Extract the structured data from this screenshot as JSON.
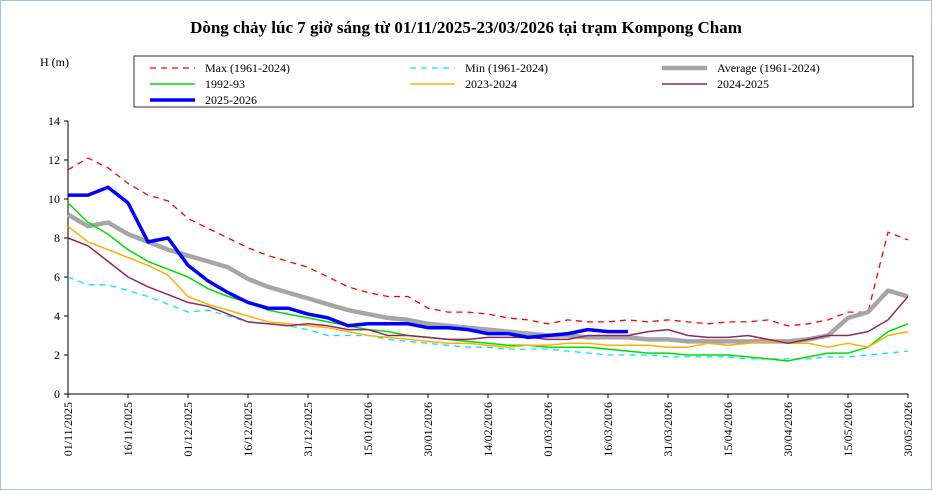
{
  "chart_data": {
    "type": "line",
    "title": "Dòng chảy lúc 7 giờ sáng từ 01/11/2025-23/03/2026 tại trạm Kompong Cham",
    "y_label": "H (m)",
    "legend": "top",
    "x": [
      "01/11/2025",
      "06/11/2025",
      "11/11/2025",
      "16/11/2025",
      "21/11/2025",
      "26/11/2025",
      "01/12/2025",
      "06/12/2025",
      "11/12/2025",
      "16/12/2025",
      "21/12/2025",
      "26/12/2025",
      "31/12/2025",
      "05/01/2026",
      "10/01/2026",
      "15/01/2026",
      "20/01/2026",
      "25/01/2026",
      "30/01/2026",
      "04/02/2026",
      "09/02/2026",
      "14/02/2026",
      "19/02/2026",
      "24/02/2026",
      "01/03/2026",
      "06/03/2026",
      "11/03/2026",
      "16/03/2026",
      "21/03/2026",
      "26/03/2026",
      "31/03/2026",
      "05/04/2026",
      "10/04/2026",
      "15/04/2026",
      "20/04/2026",
      "25/04/2026",
      "30/04/2026",
      "05/05/2026",
      "10/05/2026",
      "15/05/2026",
      "20/05/2026",
      "25/05/2026",
      "30/05/2026"
    ],
    "xlim": [
      "01/11/2025",
      "30/05/2026"
    ],
    "xticks": [
      "01/11/2025",
      "16/11/2025",
      "01/12/2025",
      "16/12/2025",
      "31/12/2025",
      "15/01/2026",
      "30/01/2026",
      "14/02/2026",
      "01/03/2026",
      "16/03/2026",
      "31/03/2026",
      "15/04/2026",
      "30/04/2026",
      "15/05/2026",
      "30/05/2026"
    ],
    "ylim": [
      0,
      14
    ],
    "yticks": [
      0,
      2,
      4,
      6,
      8,
      10,
      12,
      14
    ],
    "series": [
      {
        "name": "Max (1961-2024)",
        "color": "#ff0000",
        "line_style": "dashed",
        "values": [
          11.5,
          12.1,
          11.6,
          10.8,
          10.2,
          9.9,
          9.0,
          8.5,
          8.0,
          7.5,
          7.1,
          6.8,
          6.5,
          6.0,
          5.5,
          5.2,
          5.0,
          5.0,
          4.4,
          4.2,
          4.2,
          4.1,
          3.9,
          3.8,
          3.6,
          3.8,
          3.7,
          3.7,
          3.8,
          3.7,
          3.8,
          3.7,
          3.6,
          3.7,
          3.7,
          3.8,
          3.5,
          3.6,
          3.8,
          4.2,
          4.2,
          8.3,
          7.9
        ]
      },
      {
        "name": "Min (1961-2024)",
        "color": "#00e5ff",
        "line_style": "dashed",
        "values": [
          6.0,
          5.6,
          5.6,
          5.3,
          5.0,
          4.6,
          4.2,
          4.3,
          4.0,
          3.7,
          3.6,
          3.5,
          3.3,
          3.0,
          3.0,
          3.0,
          2.8,
          2.7,
          2.6,
          2.5,
          2.4,
          2.4,
          2.3,
          2.3,
          2.3,
          2.2,
          2.1,
          2.0,
          2.0,
          2.0,
          1.9,
          1.9,
          1.9,
          1.9,
          1.8,
          1.8,
          1.8,
          1.8,
          1.9,
          1.9,
          2.0,
          2.1,
          2.2
        ]
      },
      {
        "name": "Average (1961-2024)",
        "color": "#a6a6a6",
        "line_style": "thick",
        "values": [
          9.2,
          8.6,
          8.8,
          8.2,
          7.8,
          7.4,
          7.1,
          6.8,
          6.5,
          5.9,
          5.5,
          5.2,
          4.9,
          4.6,
          4.3,
          4.1,
          3.9,
          3.8,
          3.6,
          3.5,
          3.4,
          3.3,
          3.2,
          3.1,
          3.0,
          3.0,
          2.9,
          2.9,
          2.9,
          2.8,
          2.8,
          2.7,
          2.7,
          2.7,
          2.7,
          2.7,
          2.7,
          2.8,
          3.0,
          3.9,
          4.2,
          5.3,
          5.0
        ]
      },
      {
        "name": "1992-93",
        "color": "#00dd00",
        "line_style": "solid",
        "values": [
          9.8,
          8.8,
          8.2,
          7.4,
          6.8,
          6.4,
          6.0,
          5.4,
          5.0,
          4.7,
          4.3,
          4.1,
          3.9,
          3.7,
          3.5,
          3.3,
          3.2,
          3.0,
          2.9,
          2.8,
          2.7,
          2.6,
          2.5,
          2.5,
          2.4,
          2.4,
          2.4,
          2.3,
          2.2,
          2.1,
          2.1,
          2.0,
          2.0,
          2.0,
          1.9,
          1.8,
          1.7,
          1.9,
          2.1,
          2.1,
          2.4,
          3.2,
          3.6
        ]
      },
      {
        "name": "2023-2024",
        "color": "#ffb000",
        "line_style": "solid",
        "values": [
          8.6,
          7.8,
          7.4,
          7.0,
          6.6,
          6.1,
          5.0,
          4.6,
          4.3,
          4.0,
          3.7,
          3.6,
          3.5,
          3.4,
          3.2,
          3.0,
          2.9,
          2.8,
          2.7,
          2.6,
          2.6,
          2.5,
          2.4,
          2.5,
          2.5,
          2.6,
          2.6,
          2.5,
          2.5,
          2.5,
          2.4,
          2.4,
          2.6,
          2.5,
          2.6,
          2.7,
          2.6,
          2.6,
          2.4,
          2.6,
          2.4,
          3.0,
          3.2
        ]
      },
      {
        "name": "2024-2025",
        "color": "#8b2a5c",
        "line_style": "solid",
        "values": [
          8.0,
          7.6,
          6.8,
          6.0,
          5.5,
          5.1,
          4.7,
          4.5,
          4.1,
          3.7,
          3.6,
          3.5,
          3.6,
          3.5,
          3.3,
          3.3,
          3.0,
          3.0,
          2.9,
          2.8,
          2.8,
          2.9,
          2.9,
          2.9,
          2.8,
          2.8,
          3.0,
          3.0,
          3.0,
          3.2,
          3.3,
          3.0,
          2.9,
          2.9,
          3.0,
          2.8,
          2.6,
          2.8,
          3.0,
          3.0,
          3.2,
          3.8,
          5.0
        ]
      },
      {
        "name": "2025-2026",
        "color": "#0000ff",
        "line_style": "bold",
        "values": [
          10.2,
          10.2,
          10.6,
          9.8,
          7.8,
          8.0,
          6.6,
          5.8,
          5.2,
          4.7,
          4.4,
          4.4,
          4.1,
          3.9,
          3.5,
          3.6,
          3.6,
          3.6,
          3.4,
          3.4,
          3.3,
          3.1,
          3.1,
          2.9,
          3.0,
          3.1,
          3.3,
          3.2,
          3.2,
          null,
          null,
          null,
          null,
          null,
          null,
          null,
          null,
          null,
          null,
          null,
          null,
          null,
          null
        ]
      }
    ]
  }
}
